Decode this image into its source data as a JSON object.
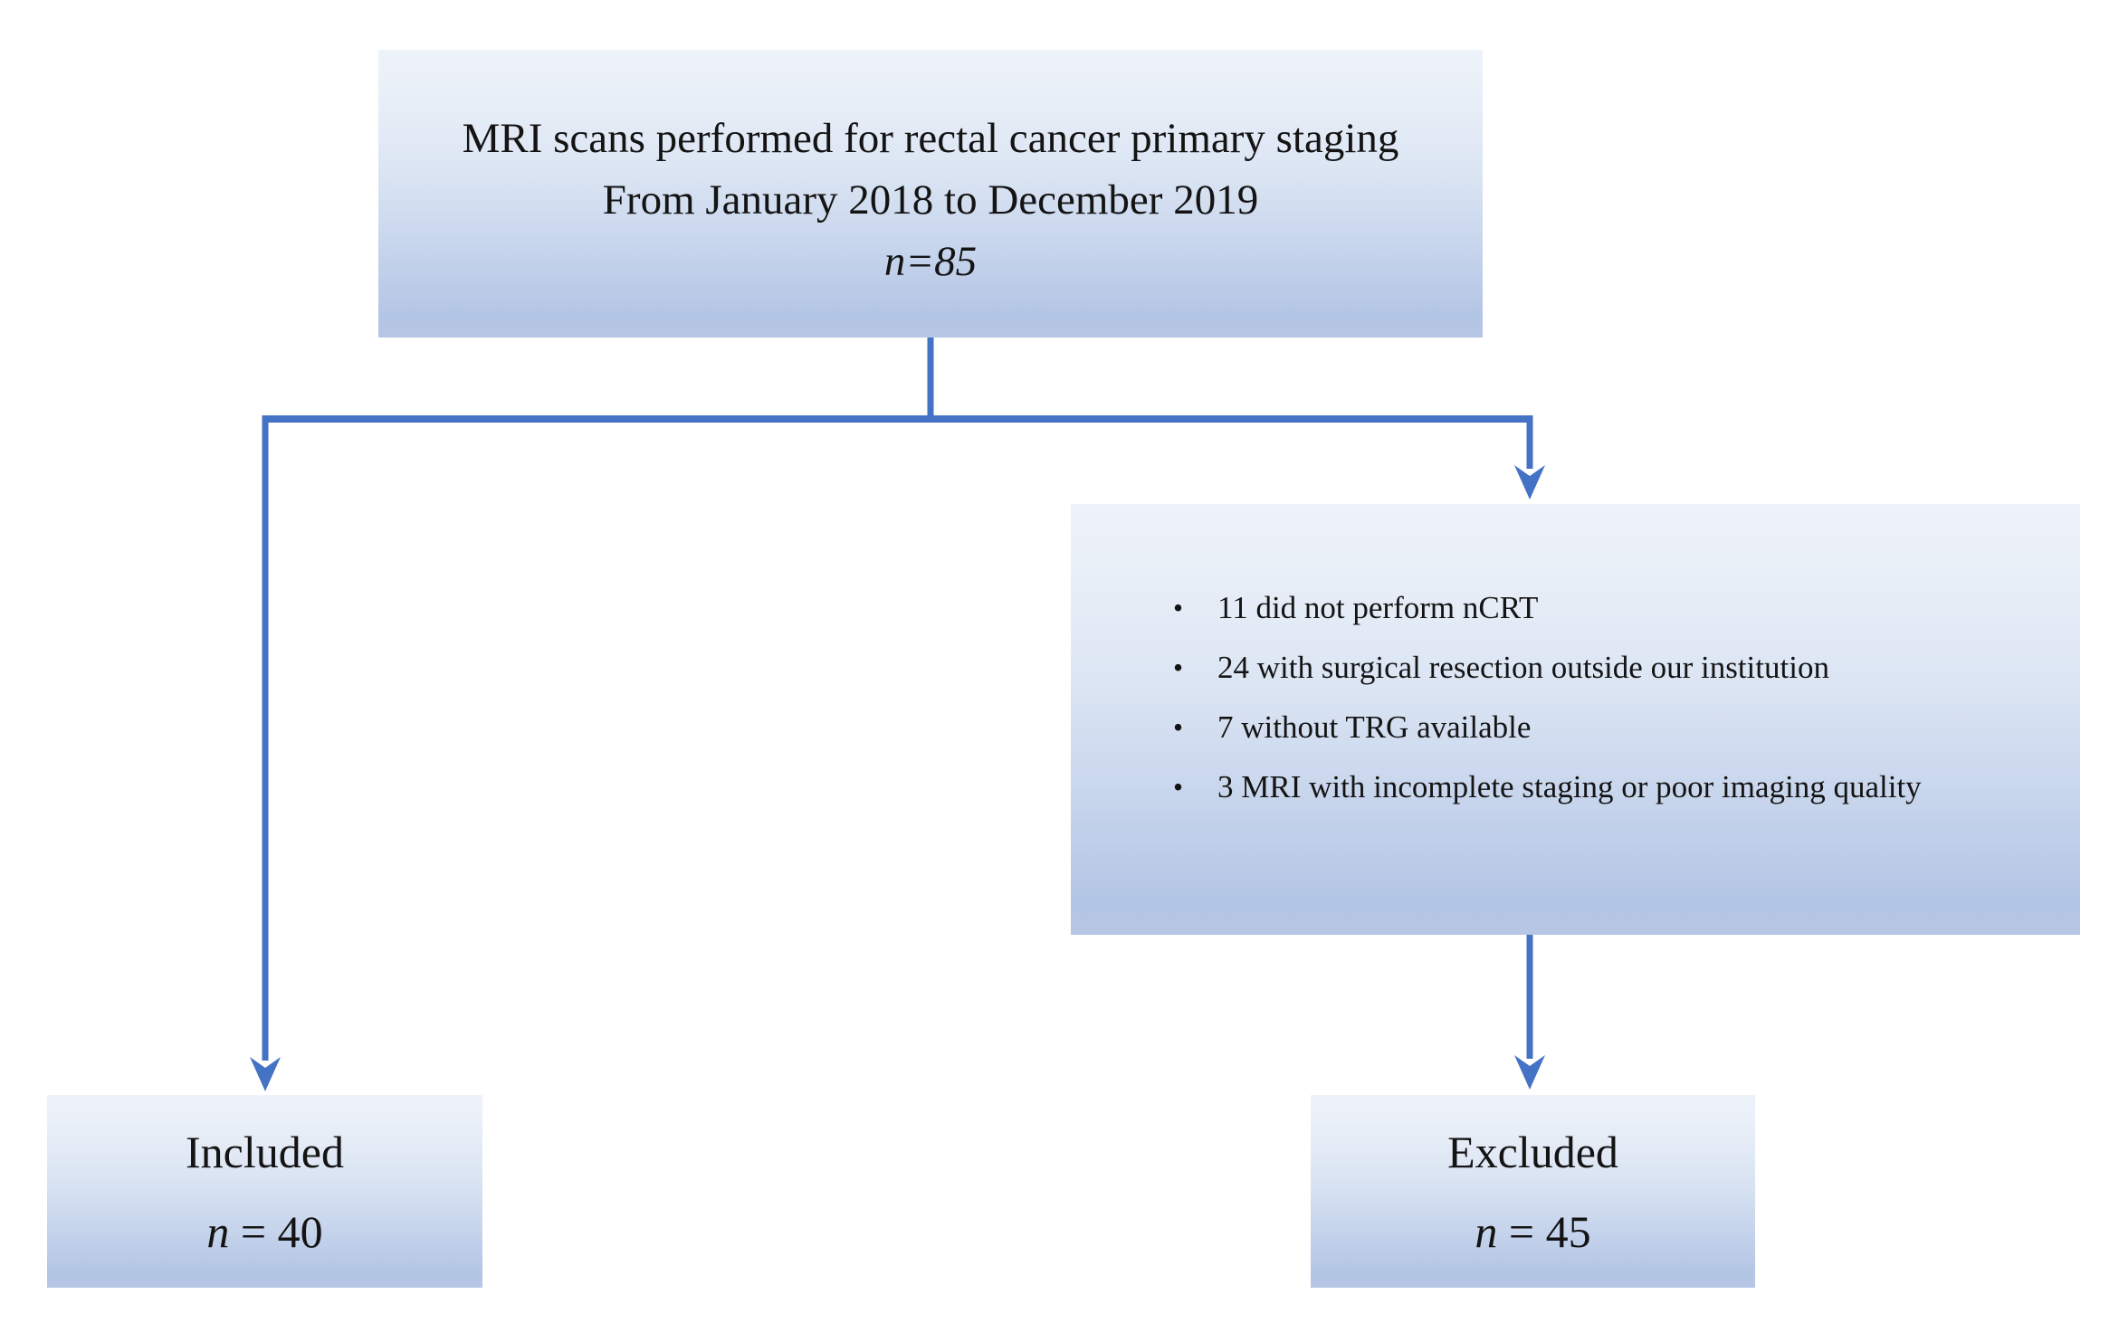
{
  "diagram": {
    "top_box": {
      "line1": "MRI scans performed for rectal cancer primary staging",
      "line2": "From January 2018 to December 2019",
      "n_line": "n=85"
    },
    "exclusion_box": {
      "bullets": [
        "11 did not perform nCRT",
        "24 with surgical resection outside our institution",
        "7 without TRG available",
        "3 MRI with incomplete staging or poor imaging quality"
      ]
    },
    "included_box": {
      "label": "Included",
      "n_symbol": "n",
      "n_value": " = 40"
    },
    "excluded_box": {
      "label": "Excluded",
      "n_symbol": "n",
      "n_value": " = 45"
    },
    "colors": {
      "connector_blue": "#4472C4",
      "box_gradient_top": "#EEF3FA",
      "box_gradient_bottom": "#B4C6E5",
      "text": "#141414"
    }
  }
}
